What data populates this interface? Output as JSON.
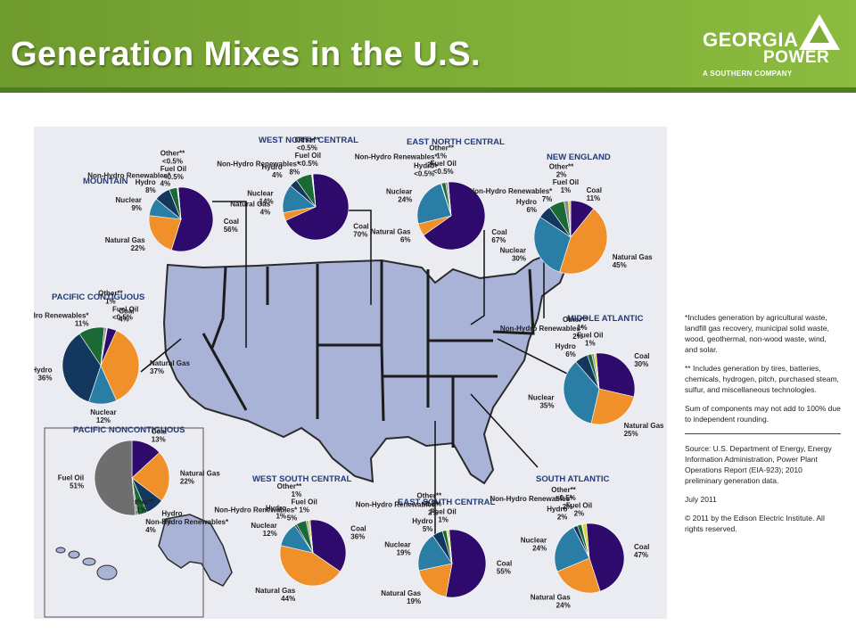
{
  "slide": {
    "title": "Generation Mixes in the U.S."
  },
  "logo": {
    "line1": "GEORGIA",
    "line2": "POWER",
    "line3": "A SOUTHERN COMPANY"
  },
  "colors": {
    "coal": "#2d0a6b",
    "natural_gas": "#f0902a",
    "nuclear": "#2a7ea6",
    "hydro": "#14375e",
    "non_hydro_renewables": "#1b6a35",
    "other": "#8c8c8c",
    "fuel_oil": "#d6d63a",
    "fuel_oil_pacific_noncontiguous": "#6e6e6e",
    "map_fill": "#a9b3d8"
  },
  "chart_data": [
    {
      "type": "pie",
      "title": "MOUNTAIN",
      "categories": [
        "Coal",
        "Natural Gas",
        "Nuclear",
        "Hydro",
        "Non-Hydro Renewables",
        "Other**",
        "Fuel Oil"
      ],
      "display": [
        "56%",
        "22%",
        "9%",
        "8%",
        "4%",
        "<0.5%",
        "<0.5%"
      ],
      "values": [
        56,
        22,
        9,
        8,
        4,
        0.3,
        0.3
      ]
    },
    {
      "type": "pie",
      "title": "WEST NORTH CENTRAL",
      "categories": [
        "Coal",
        "Natural Gas",
        "Nuclear",
        "Hydro",
        "Non-Hydro Renewables",
        "Other**",
        "Fuel Oil"
      ],
      "display": [
        "70%",
        "4%",
        "14%",
        "4%",
        "8%",
        "<0.5%",
        "<0.5%"
      ],
      "values": [
        70,
        4,
        14,
        4,
        8,
        0.3,
        0.3
      ]
    },
    {
      "type": "pie",
      "title": "EAST NORTH CENTRAL",
      "categories": [
        "Coal",
        "Natural Gas",
        "Nuclear",
        "Hydro",
        "Non-Hydro Renewables",
        "Other**",
        "Fuel Oil"
      ],
      "display": [
        "67%",
        "6%",
        "24%",
        "<0.5%",
        "2%",
        "1%",
        "<0.5%"
      ],
      "values": [
        67,
        6,
        24,
        0.3,
        2,
        1,
        0.3
      ]
    },
    {
      "type": "pie",
      "title": "NEW ENGLAND",
      "categories": [
        "Coal",
        "Natural Gas",
        "Nuclear",
        "Hydro",
        "Non-Hydro Renewables",
        "Other**",
        "Fuel Oil"
      ],
      "display": [
        "11%",
        "45%",
        "30%",
        "6%",
        "7%",
        "2%",
        "1%"
      ],
      "values": [
        11,
        45,
        30,
        6,
        7,
        2,
        1
      ]
    },
    {
      "type": "pie",
      "title": "PACIFIC CONTIGUOUS",
      "categories": [
        "Coal",
        "Natural Gas",
        "Nuclear",
        "Hydro",
        "Non-Hydro Renewables",
        "Other**",
        "Fuel Oil"
      ],
      "display": [
        "4%",
        "37%",
        "12%",
        "36%",
        "11%",
        "1%",
        "<0.5%"
      ],
      "values": [
        4,
        37,
        12,
        36,
        11,
        1,
        0.3
      ]
    },
    {
      "type": "pie",
      "title": "MIDDLE ATLANTIC",
      "categories": [
        "Coal",
        "Natural Gas",
        "Nuclear",
        "Hydro",
        "Non-Hydro Renewables",
        "Other**",
        "Fuel Oil"
      ],
      "display": [
        "30%",
        "25%",
        "35%",
        "6%",
        "2%",
        "1%",
        "1%"
      ],
      "values": [
        30,
        25,
        35,
        6,
        2,
        1,
        1
      ]
    },
    {
      "type": "pie",
      "title": "PACIFIC NONCONTIGUOUS",
      "categories": [
        "Coal",
        "Natural Gas",
        "Nuclear",
        "Hydro",
        "Non-Hydro Renewables",
        "Other**",
        "Fuel Oil"
      ],
      "display": [
        "13%",
        "22%",
        "",
        "8%",
        "4%",
        "1%",
        "51%"
      ],
      "values": [
        13,
        22,
        0,
        8,
        4,
        1,
        51
      ]
    },
    {
      "type": "pie",
      "title": "WEST SOUTH CENTRAL",
      "categories": [
        "Coal",
        "Natural Gas",
        "Nuclear",
        "Hydro",
        "Non-Hydro Renewables",
        "Other**",
        "Fuel Oil"
      ],
      "display": [
        "36%",
        "44%",
        "12%",
        "1%",
        "5%",
        "1%",
        "1%"
      ],
      "values": [
        36,
        44,
        12,
        1,
        5,
        1,
        1
      ]
    },
    {
      "type": "pie",
      "title": "EAST SOUTH CENTRAL",
      "categories": [
        "Coal",
        "Natural Gas",
        "Nuclear",
        "Hydro",
        "Non-Hydro Renewables",
        "Other**",
        "Fuel Oil"
      ],
      "display": [
        "55%",
        "19%",
        "19%",
        "5%",
        "2%",
        "<0.5%",
        "1%"
      ],
      "values": [
        55,
        19,
        19,
        5,
        2,
        0.3,
        1
      ]
    },
    {
      "type": "pie",
      "title": "SOUTH ATLANTIC",
      "categories": [
        "Coal",
        "Natural Gas",
        "Nuclear",
        "Hydro",
        "Non-Hydro Renewables",
        "Other**",
        "Fuel Oil"
      ],
      "display": [
        "47%",
        "24%",
        "24%",
        "2%",
        "2%",
        "<0.5%",
        "2%"
      ],
      "values": [
        47,
        24,
        24,
        2,
        2,
        0.3,
        2
      ]
    }
  ],
  "notes": {
    "note1": "*Includes generation by agricultural waste, landfill gas recovery, municipal solid waste, wood, geothermal, non-wood waste, wind, and solar.",
    "note2": "** Includes generation by tires, batteries, chemicals, hydrogen, pitch, purchased steam, sulfur, and miscellaneous technologies.",
    "note3": "Sum of components may not add to 100% due to independent rounding.",
    "source": "Source: U.S. Department of Energy, Energy Information Administration, Power Plant Operations Report (EIA-923); 2010 preliminary generation data.",
    "date": "July 2011",
    "copyright": "© 2011 by the Edison Electric Institute. All rights reserved."
  }
}
